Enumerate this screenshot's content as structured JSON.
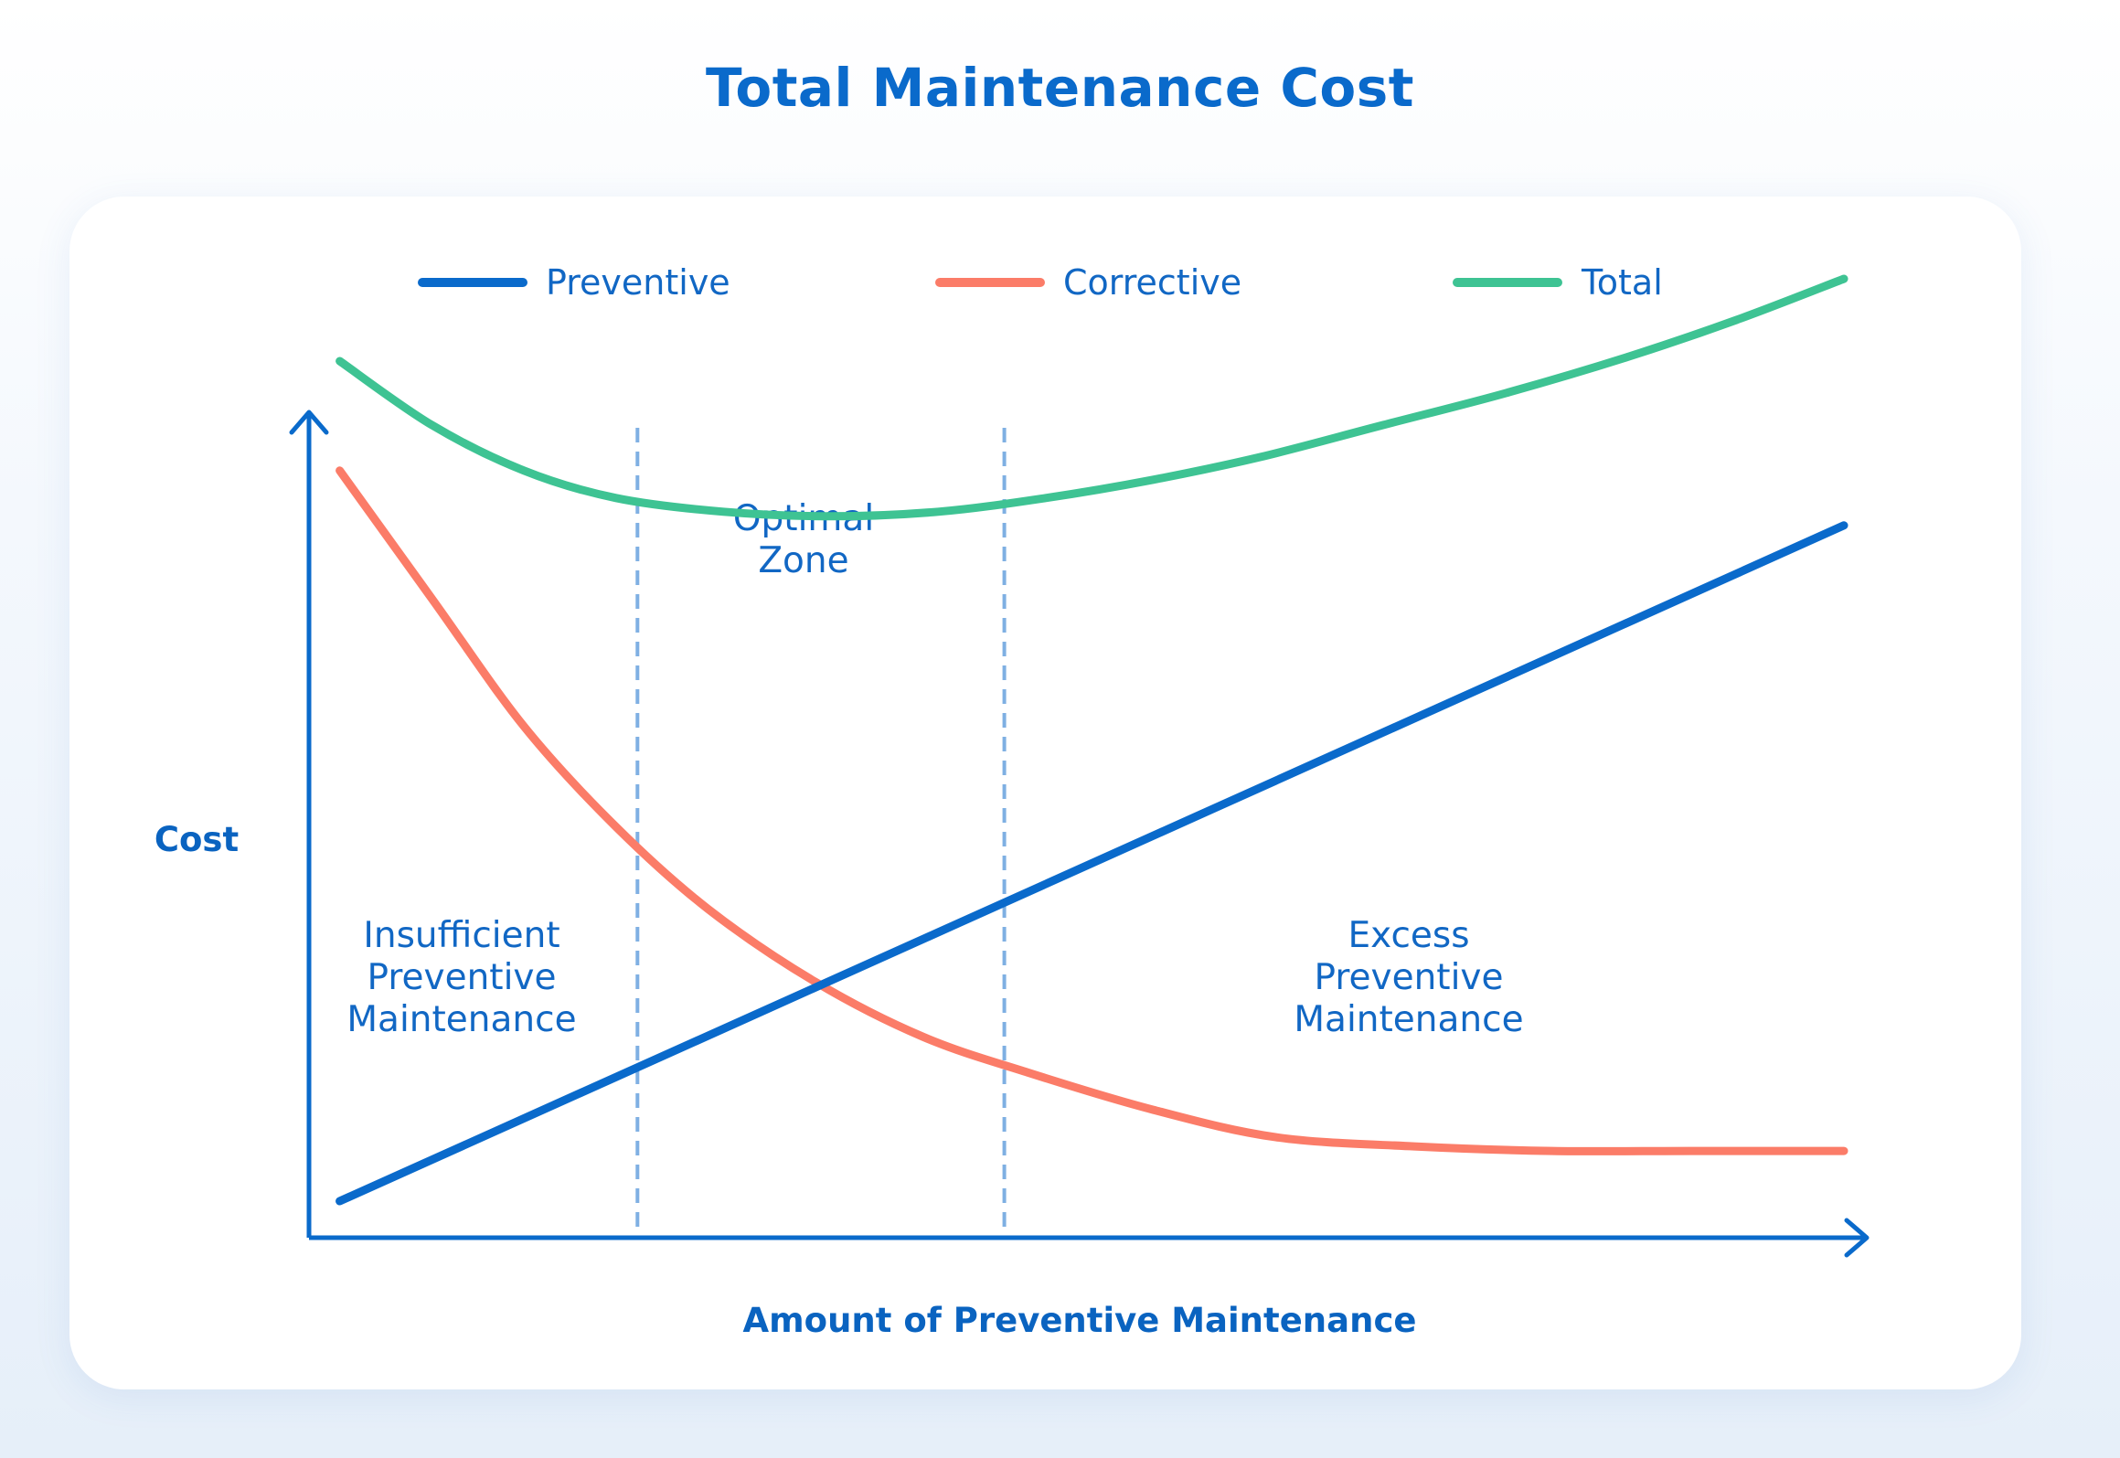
{
  "chart_data": {
    "type": "line",
    "title": "Total Maintenance Cost",
    "xlabel": "Amount of Preventive Maintenance",
    "ylabel": "Cost",
    "xlim": [
      0,
      100
    ],
    "ylim": [
      0,
      100
    ],
    "grid": false,
    "legend_position": "top",
    "colors": {
      "axis": "#0a6acb",
      "divider": "#7fb0e3",
      "text": "#1167c4"
    },
    "series": [
      {
        "name": "Preventive",
        "color": "#0a6acb",
        "x": [
          2,
          100
        ],
        "y": [
          4,
          78
        ]
      },
      {
        "name": "Corrective",
        "color": "#fb7c68",
        "x": [
          2,
          8,
          14,
          20,
          26,
          33,
          40,
          47,
          55,
          63,
          72,
          81,
          90,
          100
        ],
        "y": [
          84,
          70,
          56,
          45,
          36,
          28,
          22,
          18,
          14,
          11,
          10,
          9.5,
          9.5,
          9.5
        ]
      },
      {
        "name": "Total",
        "color": "#3ec393",
        "x": [
          2,
          8,
          14,
          20,
          27,
          34,
          41,
          48,
          55,
          62,
          70,
          78,
          86,
          93,
          100
        ],
        "y": [
          96,
          89,
          84,
          81,
          79.5,
          79,
          79.5,
          81,
          83,
          85.5,
          89,
          92.5,
          96.5,
          100.5,
          105
        ]
      }
    ],
    "zone_dividers": [
      21.4,
      45.3
    ],
    "zones": [
      {
        "label": [
          "Insufficient",
          "Preventive",
          "Maintenance"
        ]
      },
      {
        "label": [
          "Optimal",
          "Zone"
        ]
      },
      {
        "label": [
          "Excess",
          "Preventive",
          "Maintenance"
        ]
      }
    ]
  }
}
